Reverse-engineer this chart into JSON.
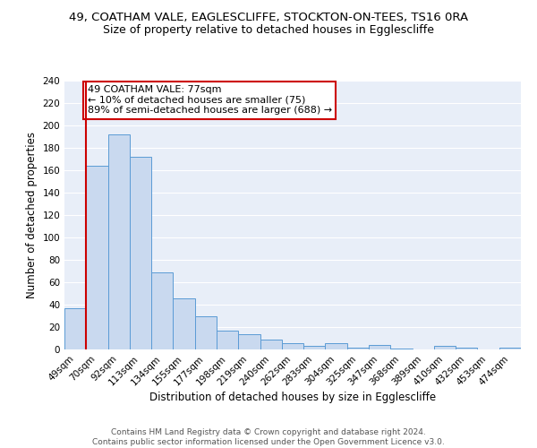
{
  "title_line1": "49, COATHAM VALE, EAGLESCLIFFE, STOCKTON-ON-TEES, TS16 0RA",
  "title_line2": "Size of property relative to detached houses in Egglescliffe",
  "xlabel": "Distribution of detached houses by size in Egglescliffe",
  "ylabel": "Number of detached properties",
  "categories": [
    "49sqm",
    "70sqm",
    "92sqm",
    "113sqm",
    "134sqm",
    "155sqm",
    "177sqm",
    "198sqm",
    "219sqm",
    "240sqm",
    "262sqm",
    "283sqm",
    "304sqm",
    "325sqm",
    "347sqm",
    "368sqm",
    "389sqm",
    "410sqm",
    "432sqm",
    "453sqm",
    "474sqm"
  ],
  "values": [
    37,
    164,
    192,
    172,
    69,
    46,
    30,
    17,
    14,
    9,
    6,
    3,
    6,
    2,
    4,
    1,
    0,
    3,
    2,
    0,
    2
  ],
  "bar_color": "#c9d9ef",
  "bar_edge_color": "#5b9bd5",
  "vline_color": "#cc0000",
  "annotation_text": "49 COATHAM VALE: 77sqm\n← 10% of detached houses are smaller (75)\n89% of semi-detached houses are larger (688) →",
  "annotation_box_edge_color": "#cc0000",
  "ylim": [
    0,
    240
  ],
  "yticks": [
    0,
    20,
    40,
    60,
    80,
    100,
    120,
    140,
    160,
    180,
    200,
    220,
    240
  ],
  "background_color": "#e8eef8",
  "footer_line1": "Contains HM Land Registry data © Crown copyright and database right 2024.",
  "footer_line2": "Contains public sector information licensed under the Open Government Licence v3.0.",
  "title_fontsize": 9.5,
  "subtitle_fontsize": 9,
  "label_fontsize": 8.5,
  "tick_fontsize": 7.5,
  "annotation_fontsize": 8,
  "footer_fontsize": 6.5
}
